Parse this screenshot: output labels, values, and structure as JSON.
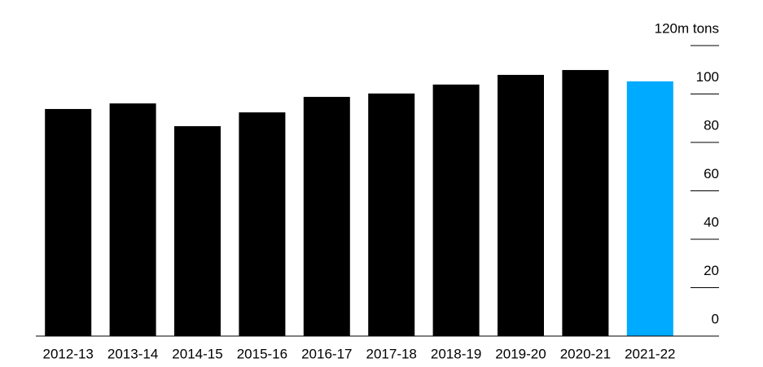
{
  "chart_data": {
    "type": "bar",
    "categories": [
      "2012-13",
      "2013-14",
      "2014-15",
      "2015-16",
      "2016-17",
      "2017-18",
      "2018-19",
      "2019-20",
      "2020-21",
      "2021-22"
    ],
    "values": [
      93.8,
      96.1,
      86.7,
      92.4,
      98.8,
      100.2,
      103.9,
      107.9,
      109.9,
      105.2
    ],
    "colors": [
      "#000000",
      "#000000",
      "#000000",
      "#000000",
      "#000000",
      "#000000",
      "#000000",
      "#000000",
      "#000000",
      "#00aaff"
    ],
    "ylim": [
      0,
      120
    ],
    "yticks": [
      0,
      20,
      40,
      60,
      80,
      100,
      {
        "value": 120,
        "label": "120m tons"
      }
    ],
    "y_axis_side": "right"
  }
}
